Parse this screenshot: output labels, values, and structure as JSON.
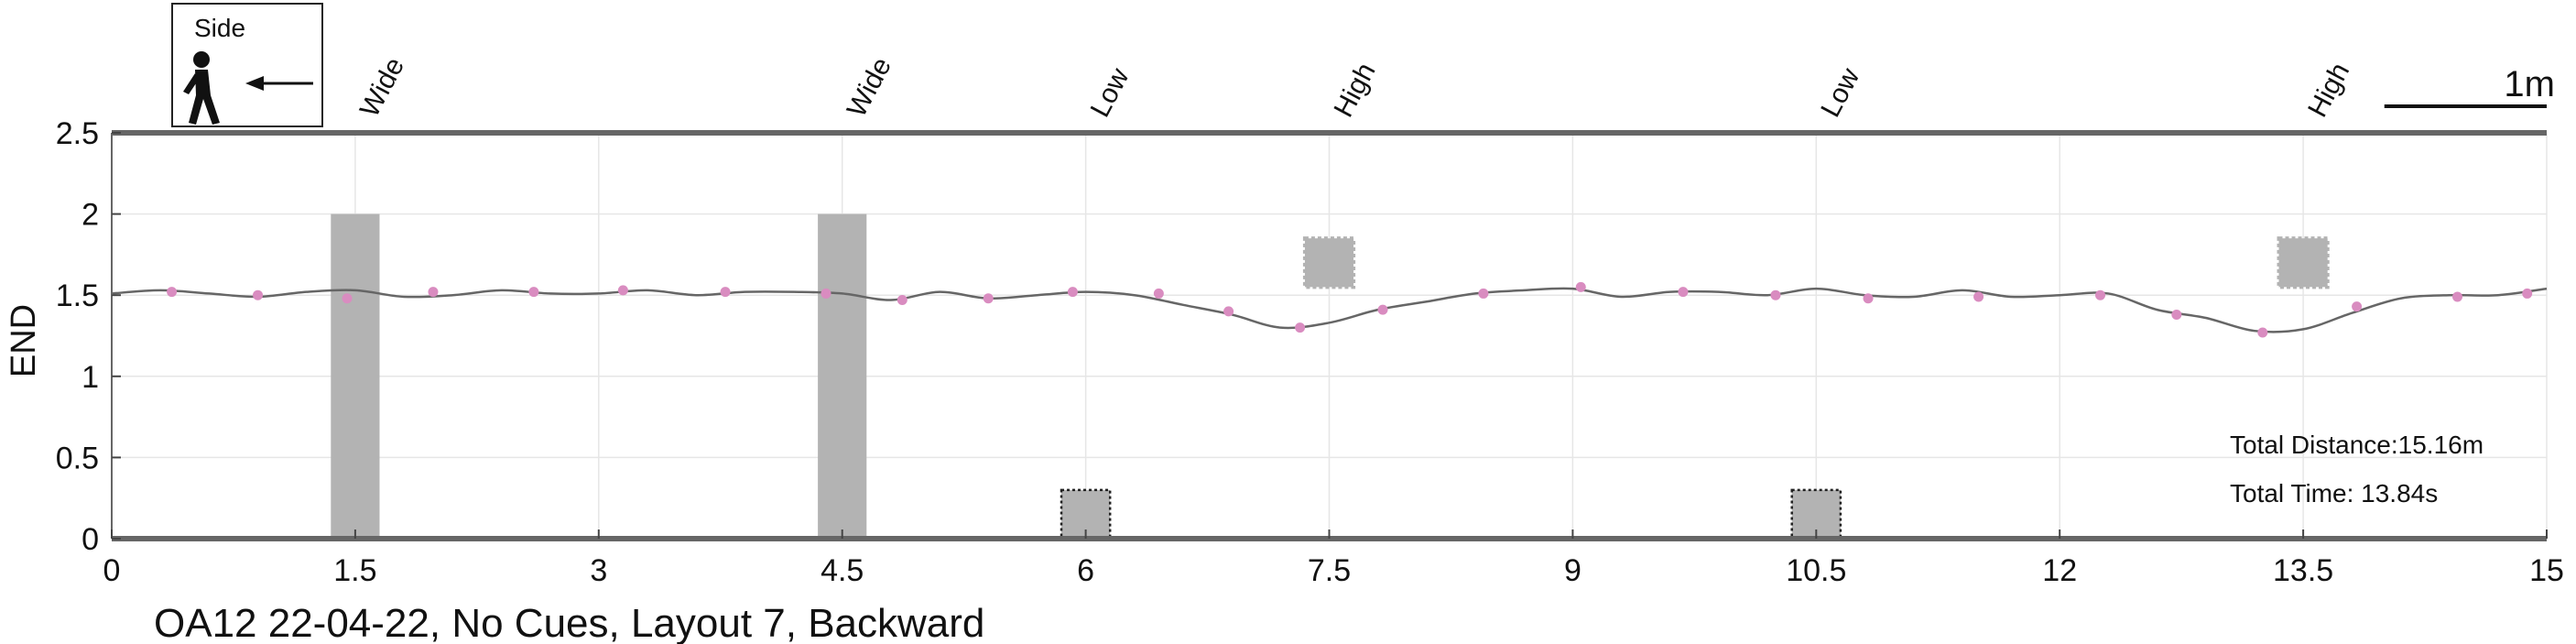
{
  "chart_data": {
    "type": "line",
    "title": "OA12 22-04-22, No Cues, Layout 7, Backward",
    "xlabel": "",
    "ylabel": "END",
    "xlim": [
      0,
      15
    ],
    "ylim": [
      0,
      2.5
    ],
    "xticks": [
      0,
      1.5,
      3,
      4.5,
      6,
      7.5,
      9,
      10.5,
      12,
      13.5,
      15
    ],
    "xtick_labels": [
      "0",
      "1.5",
      "3",
      "4.5",
      "6",
      "7.5",
      "9",
      "10.5",
      "12",
      "13.5",
      "15"
    ],
    "yticks": [
      0,
      0.5,
      1,
      1.5,
      2,
      2.5
    ],
    "ytick_labels": [
      "0",
      "0.5",
      "1",
      "1.5",
      "2",
      "2.5"
    ],
    "grid": true,
    "series": [
      {
        "x": [
          0.0,
          0.3,
          0.6,
          0.9,
          1.2,
          1.5,
          1.8,
          2.1,
          2.4,
          2.7,
          3.0,
          3.3,
          3.6,
          3.9,
          4.2,
          4.5,
          4.8,
          5.1,
          5.4,
          5.7,
          6.0,
          6.3,
          6.6,
          6.9,
          7.2,
          7.5,
          7.8,
          8.1,
          8.4,
          8.7,
          9.0,
          9.3,
          9.6,
          9.9,
          10.2,
          10.5,
          10.8,
          11.1,
          11.4,
          11.7,
          12.0,
          12.3,
          12.6,
          12.9,
          13.2,
          13.5,
          13.8,
          14.1,
          14.4,
          14.7,
          15.0
        ],
        "y": [
          1.51,
          1.53,
          1.51,
          1.49,
          1.52,
          1.53,
          1.49,
          1.5,
          1.53,
          1.51,
          1.51,
          1.53,
          1.5,
          1.52,
          1.52,
          1.51,
          1.47,
          1.52,
          1.48,
          1.5,
          1.52,
          1.5,
          1.44,
          1.38,
          1.3,
          1.33,
          1.41,
          1.46,
          1.51,
          1.53,
          1.54,
          1.49,
          1.52,
          1.52,
          1.5,
          1.54,
          1.5,
          1.49,
          1.53,
          1.49,
          1.5,
          1.51,
          1.41,
          1.36,
          1.28,
          1.29,
          1.39,
          1.48,
          1.5,
          1.5,
          1.54
        ]
      }
    ],
    "markers": {
      "x": [
        0.37,
        0.9,
        1.45,
        1.98,
        2.6,
        3.15,
        3.78,
        4.4,
        4.87,
        5.4,
        5.92,
        6.45,
        6.88,
        7.32,
        7.83,
        8.45,
        9.05,
        9.68,
        10.25,
        10.82,
        11.5,
        12.25,
        12.72,
        13.25,
        13.83,
        14.45,
        14.88
      ],
      "y": [
        1.52,
        1.5,
        1.48,
        1.52,
        1.52,
        1.53,
        1.52,
        1.51,
        1.47,
        1.48,
        1.52,
        1.51,
        1.4,
        1.3,
        1.41,
        1.51,
        1.55,
        1.52,
        1.5,
        1.48,
        1.49,
        1.5,
        1.38,
        1.27,
        1.43,
        1.49,
        1.51
      ],
      "color": "#d98cc0"
    },
    "line_color": "#666666",
    "obstacles": [
      {
        "label": "Wide",
        "x_center": 1.5,
        "width": 0.3,
        "y_bottom": 0,
        "y_top": 2.0,
        "style": "solid"
      },
      {
        "label": "Wide",
        "x_center": 4.5,
        "width": 0.3,
        "y_bottom": 0,
        "y_top": 2.0,
        "style": "solid"
      },
      {
        "label": "Low",
        "x_center": 6.0,
        "width": 0.3,
        "y_bottom": 0,
        "y_top": 0.3,
        "style": "dotted"
      },
      {
        "label": "High",
        "x_center": 7.5,
        "width": 0.3,
        "y_bottom": 1.55,
        "y_top": 1.85,
        "style": "fuzzy"
      },
      {
        "label": "Low",
        "x_center": 10.5,
        "width": 0.3,
        "y_bottom": 0,
        "y_top": 0.3,
        "style": "dotted"
      },
      {
        "label": "High",
        "x_center": 13.5,
        "width": 0.3,
        "y_bottom": 1.55,
        "y_top": 1.85,
        "style": "fuzzy"
      }
    ],
    "obstacle_color": "#b3b3b3",
    "annotations": {
      "total_distance": "Total Distance:15.16m",
      "total_time": "Total Time: 13.84s",
      "scale_bar_label": "1m",
      "scale_bar_length": 1
    },
    "legend_box": {
      "title": "Side",
      "icon": "walking-person-icon",
      "arrow": "left-arrow-icon"
    }
  }
}
